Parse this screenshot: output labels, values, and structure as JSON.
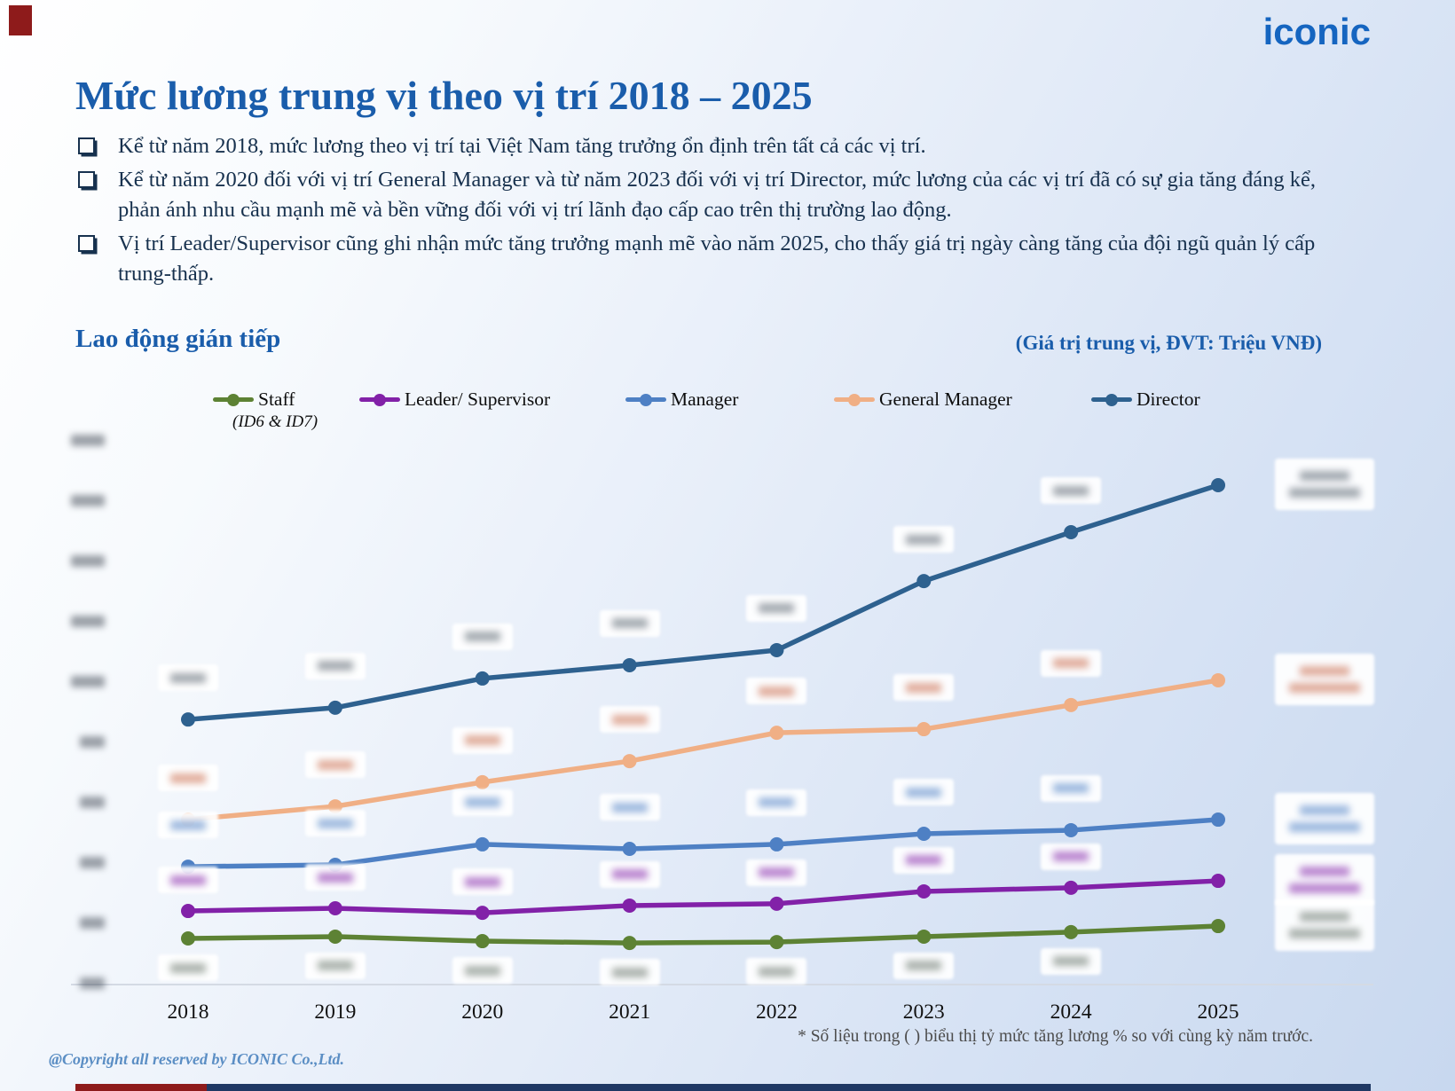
{
  "header": {
    "logo_text": "iconic",
    "title": "Mức lương trung vị theo vị trí 2018 – 2025"
  },
  "bullets": [
    "Kể từ năm 2018, mức lương theo vị trí tại Việt Nam tăng trưởng ổn định trên tất cả các vị trí.",
    "Kể từ năm 2020 đối với vị trí General Manager và từ năm 2023 đối với vị trí Director, mức lương của các vị trí đã có sự gia tăng đáng kể, phản ánh nhu cầu mạnh mẽ và bền vững đối với vị trí lãnh đạo cấp cao trên thị trường lao động.",
    "Vị trí Leader/Supervisor cũng ghi nhận mức tăng trưởng mạnh mẽ vào năm 2025, cho thấy giá trị ngày càng tăng của đội ngũ quản lý cấp trung-thấp."
  ],
  "section": {
    "left_label": "Lao động gián tiếp",
    "right_label": "(Giá trị trung vị, ĐVT: Triệu VNĐ)"
  },
  "footnote": "* Số liệu trong ( ) biểu thị tỷ mức tăng lương % so với cùng kỳ năm trước.",
  "copyright": "@Copyright all reserved by ICONIC Co.,Ltd.",
  "colors": {
    "title_blue": "#1a5dab",
    "body_text": "#17314e",
    "logo_blue": "#1565c0",
    "accent_red": "#8e1b1b",
    "footer_navy": "#1f3864",
    "axis_line": "#d4dae4"
  },
  "chart_data": {
    "type": "line",
    "title": "Lao động gián tiếp",
    "unit_note": "(Giá trị trung vị, ĐVT: Triệu VNĐ)",
    "x": [
      2018,
      2019,
      2020,
      2021,
      2022,
      2023,
      2024,
      2025
    ],
    "series": [
      {
        "name": "Staff",
        "sub_label": "(ID6 & ID7)",
        "color": "#5d8234",
        "label_color": "#68756a",
        "values": [
          15.0,
          15.6,
          14.1,
          13.5,
          13.8,
          15.6,
          17.1,
          19.1
        ]
      },
      {
        "name": "Leader/ Supervisor",
        "color": "#8221a8",
        "label_color": "#8221a8",
        "values": [
          24.1,
          25.0,
          23.5,
          25.9,
          26.5,
          30.6,
          31.8,
          34.1
        ]
      },
      {
        "name": "Manager",
        "color": "#4e80c4",
        "label_color": "#4e80c4",
        "values": [
          38.8,
          39.4,
          46.2,
          44.7,
          46.2,
          49.7,
          50.9,
          54.4
        ]
      },
      {
        "name": "General Manager",
        "color": "#f0af85",
        "label_color": "#c96a4a",
        "values": [
          54.4,
          58.8,
          66.8,
          73.8,
          83.2,
          84.4,
          92.4,
          100.6
        ]
      },
      {
        "name": "Director",
        "color": "#2e618f",
        "label_color": "#5a6570",
        "values": [
          87.6,
          91.5,
          101.2,
          105.6,
          110.6,
          133.5,
          149.7,
          165.3
        ]
      }
    ],
    "ylim": [
      0,
      180
    ],
    "ytick_step": 20,
    "grid": false,
    "legend_position": "top",
    "values_estimated_from_pixels": true,
    "point_labels_blurred_in_source": true,
    "yaxis_tick_labels_blurred_in_source": true,
    "last_point_label_format": "value and (% change) — blurred"
  }
}
